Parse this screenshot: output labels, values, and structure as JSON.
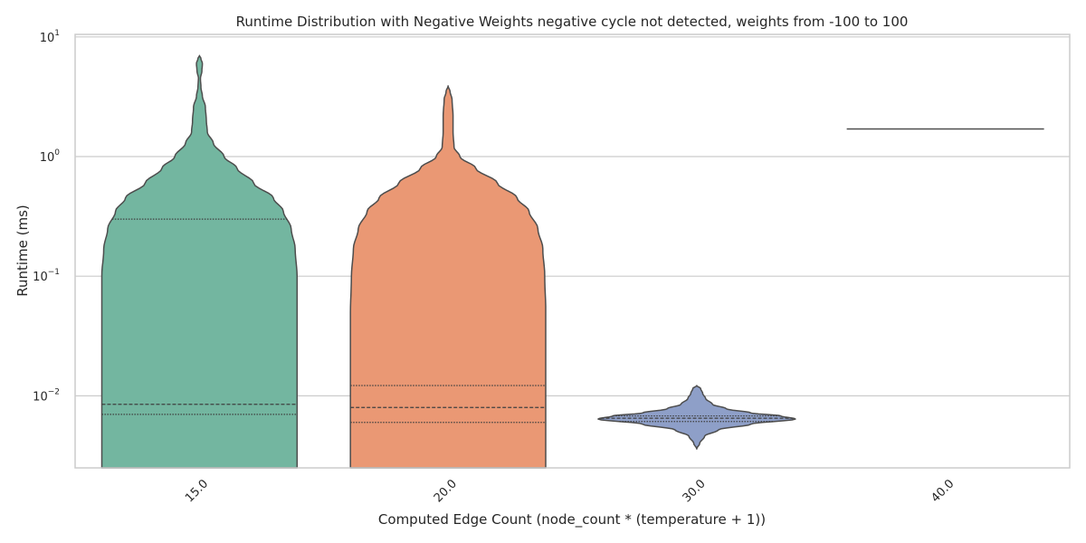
{
  "chart_data": {
    "type": "violin",
    "title": "Runtime Distribution with Negative Weights negative cycle not detected, weights from -100 to 100",
    "xlabel": "Computed Edge Count (node_count * (temperature + 1))",
    "ylabel": "Runtime (ms)",
    "yscale": "log",
    "ylim": [
      0.0025,
      10.5
    ],
    "yticks": [
      {
        "base": "10",
        "exp": "−2",
        "value": 0.01
      },
      {
        "base": "10",
        "exp": "−1",
        "value": 0.1
      },
      {
        "base": "10",
        "exp": "0",
        "value": 1
      },
      {
        "base": "10",
        "exp": "1",
        "value": 10
      }
    ],
    "categories": [
      "15.0",
      "20.0",
      "30.0",
      "40.0"
    ],
    "grid": "horizontal",
    "palette": [
      "#73b6a0",
      "#ea9874",
      "#8e9fc8",
      "#8e9fc8"
    ],
    "series": [
      {
        "category": "15.0",
        "color": "#73b6a0",
        "quartiles": [
          0.007,
          0.0085,
          0.3
        ],
        "profile": [
          [
            0.0025,
            0.99
          ],
          [
            0.01,
            0.99
          ],
          [
            0.05,
            0.99
          ],
          [
            0.1,
            0.99
          ],
          [
            0.17,
            0.97
          ],
          [
            0.25,
            0.93
          ],
          [
            0.35,
            0.85
          ],
          [
            0.45,
            0.75
          ],
          [
            0.6,
            0.55
          ],
          [
            0.8,
            0.38
          ],
          [
            1.0,
            0.25
          ],
          [
            1.3,
            0.14
          ],
          [
            1.6,
            0.08
          ],
          [
            2.0,
            0.07
          ],
          [
            2.6,
            0.06
          ],
          [
            3.2,
            0.03
          ],
          [
            3.8,
            0.015
          ],
          [
            4.5,
            0.01
          ],
          [
            5.2,
            0.025
          ],
          [
            6.0,
            0.03
          ],
          [
            6.6,
            0.015
          ],
          [
            7.0,
            0.0
          ]
        ]
      },
      {
        "category": "20.0",
        "color": "#ea9874",
        "quartiles": [
          0.006,
          0.008,
          0.0122
        ],
        "profile": [
          [
            0.0025,
            0.99
          ],
          [
            0.01,
            0.99
          ],
          [
            0.05,
            0.99
          ],
          [
            0.1,
            0.98
          ],
          [
            0.17,
            0.96
          ],
          [
            0.25,
            0.91
          ],
          [
            0.35,
            0.82
          ],
          [
            0.45,
            0.7
          ],
          [
            0.6,
            0.5
          ],
          [
            0.8,
            0.28
          ],
          [
            1.0,
            0.12
          ],
          [
            1.2,
            0.06
          ],
          [
            1.6,
            0.05
          ],
          [
            2.2,
            0.05
          ],
          [
            3.0,
            0.04
          ],
          [
            3.5,
            0.02
          ],
          [
            3.9,
            0.0
          ]
        ]
      },
      {
        "category": "30.0",
        "color": "#8e9fc8",
        "quartiles": [
          0.0061,
          0.0065,
          0.0068
        ],
        "profile": [
          [
            0.0036,
            0.0
          ],
          [
            0.004,
            0.03
          ],
          [
            0.0046,
            0.08
          ],
          [
            0.0052,
            0.22
          ],
          [
            0.0058,
            0.55
          ],
          [
            0.0064,
            1.0
          ],
          [
            0.0068,
            0.85
          ],
          [
            0.0072,
            0.55
          ],
          [
            0.0078,
            0.3
          ],
          [
            0.0085,
            0.16
          ],
          [
            0.0095,
            0.09
          ],
          [
            0.0105,
            0.06
          ],
          [
            0.0115,
            0.04
          ],
          [
            0.0122,
            0.0
          ]
        ]
      },
      {
        "category": "40.0",
        "color": "#8e9fc8",
        "single_value": 1.7
      }
    ]
  }
}
